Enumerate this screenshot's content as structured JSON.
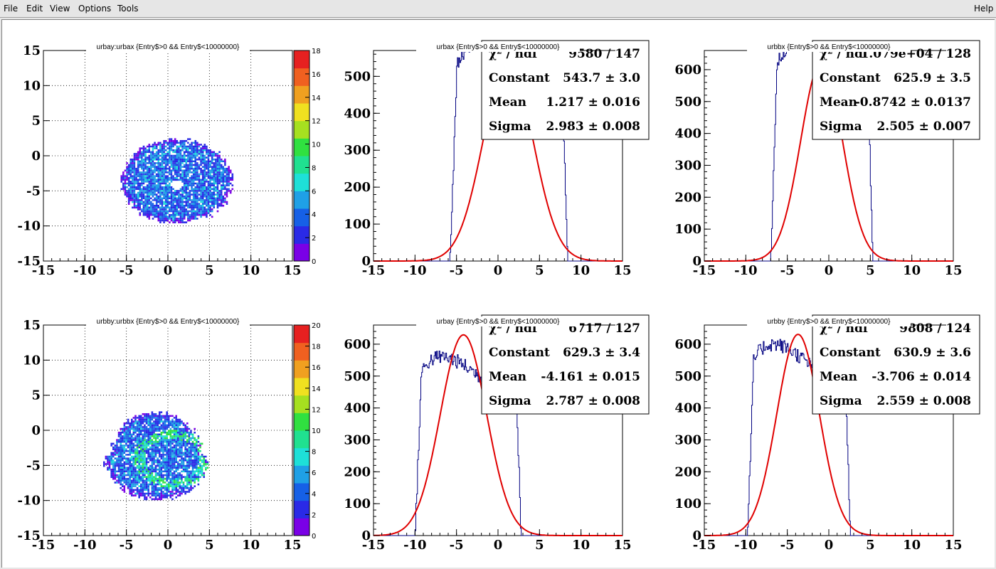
{
  "menubar": {
    "items": [
      "File",
      "Edit",
      "View",
      "Options",
      "Tools"
    ],
    "help": "Help"
  },
  "colors": {
    "histogram_line": "#000080",
    "fit_line": "#e00000",
    "palette": [
      "#7a00e6",
      "#2a2ae6",
      "#1660e6",
      "#1fa0e6",
      "#1ee0d8",
      "#20e090",
      "#30e040",
      "#a6e020",
      "#f0e020",
      "#f0a020",
      "#f06020",
      "#e62020"
    ]
  },
  "pads": [
    {
      "type": "2d",
      "title": "urbay:urbax {Entry$>0 && Entry$<10000000}",
      "x_ticks": [
        "-15",
        "-10",
        "-5",
        "0",
        "5",
        "10",
        "15"
      ],
      "y_ticks": [
        "-15",
        "-10",
        "-5",
        "0",
        "5",
        "10",
        "15"
      ],
      "z_ticks": [
        "0",
        "2",
        "4",
        "6",
        "8",
        "10",
        "12",
        "14",
        "16",
        "18"
      ],
      "z_max": 18
    },
    {
      "type": "hist",
      "title": "urbax {Entry$>0 && Entry$<10000000}",
      "x_ticks": [
        "-15",
        "-10",
        "-5",
        "0",
        "5",
        "10",
        "15"
      ],
      "y_ticks": [
        "0",
        "100",
        "200",
        "300",
        "400",
        "500"
      ],
      "y_max": 570,
      "stats": [
        {
          "label": "χ² / ndf",
          "value": "9580 / 147"
        },
        {
          "label": "Constant",
          "value": "543.7 ± 3.0"
        },
        {
          "label": "Mean",
          "value": "1.217 ± 0.016"
        },
        {
          "label": "Sigma",
          "value": "2.983 ± 0.008"
        }
      ],
      "fit": {
        "constant": 543.7,
        "mean": 1.217,
        "sigma": 2.983
      },
      "hist": {
        "lo": -5.8,
        "hi": 8.4,
        "skew": 0.55,
        "peak": 600
      }
    },
    {
      "type": "hist",
      "title": "urbbx {Entry$>0 && Entry$<10000000}",
      "x_ticks": [
        "-15",
        "-10",
        "-5",
        "0",
        "5",
        "10",
        "15"
      ],
      "y_ticks": [
        "0",
        "100",
        "200",
        "300",
        "400",
        "500",
        "600"
      ],
      "y_max": 660,
      "stats": [
        {
          "label": "χ² / ndf",
          "value": "1.079e+04 / 128"
        },
        {
          "label": "Constant",
          "value": "625.9 ± 3.5"
        },
        {
          "label": "Mean",
          "value": "-0.8742 ± 0.0137"
        },
        {
          "label": "Sigma",
          "value": "2.505 ± 0.007"
        }
      ],
      "fit": {
        "constant": 625.9,
        "mean": -0.8742,
        "sigma": 2.505
      },
      "hist": {
        "lo": -7.0,
        "hi": 5.3,
        "skew": 0.55,
        "peak": 690
      }
    },
    {
      "type": "2d",
      "title": "urbby:urbbx {Entry$>0 && Entry$<10000000}",
      "x_ticks": [
        "-15",
        "-10",
        "-5",
        "0",
        "5",
        "10",
        "15"
      ],
      "y_ticks": [
        "-15",
        "-10",
        "-5",
        "0",
        "5",
        "10",
        "15"
      ],
      "z_ticks": [
        "0",
        "2",
        "4",
        "6",
        "8",
        "10",
        "12",
        "14",
        "16",
        "18",
        "20"
      ],
      "z_max": 20
    },
    {
      "type": "hist",
      "title": "urbay {Entry$>0 && Entry$<10000000}",
      "x_ticks": [
        "-15",
        "-10",
        "-5",
        "0",
        "5",
        "10",
        "15"
      ],
      "y_ticks": [
        "0",
        "100",
        "200",
        "300",
        "400",
        "500",
        "600"
      ],
      "y_max": 660,
      "stats": [
        {
          "label": "χ² / ndf",
          "value": "6717 / 127"
        },
        {
          "label": "Constant",
          "value": "629.3 ± 3.4"
        },
        {
          "label": "Mean",
          "value": "-4.161 ± 0.015"
        },
        {
          "label": "Sigma",
          "value": "2.787 ± 0.008"
        }
      ],
      "fit": {
        "constant": 629.3,
        "mean": -4.161,
        "sigma": 2.787
      },
      "hist": {
        "lo": -10.0,
        "hi": 2.8,
        "skew": 0.5,
        "peak": 560
      }
    },
    {
      "type": "hist",
      "title": "urbby {Entry$>0 && Entry$<10000000}",
      "x_ticks": [
        "-15",
        "-10",
        "-5",
        "0",
        "5",
        "10",
        "15"
      ],
      "y_ticks": [
        "0",
        "100",
        "200",
        "300",
        "400",
        "500",
        "600"
      ],
      "y_max": 660,
      "stats": [
        {
          "label": "χ² / ndf",
          "value": "9808 / 124"
        },
        {
          "label": "Constant",
          "value": "630.9 ± 3.6"
        },
        {
          "label": "Mean",
          "value": "-3.706 ± 0.014"
        },
        {
          "label": "Sigma",
          "value": "2.559 ± 0.008"
        }
      ],
      "fit": {
        "constant": 630.9,
        "mean": -3.706,
        "sigma": 2.559
      },
      "hist": {
        "lo": -9.8,
        "hi": 2.6,
        "skew": 0.5,
        "peak": 600
      }
    }
  ]
}
